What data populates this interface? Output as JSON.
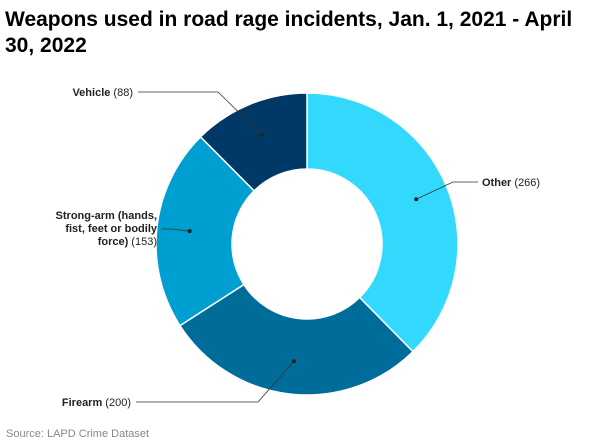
{
  "title": "Weapons used in road rage incidents, Jan. 1, 2021 - April 30, 2022",
  "source": "Source: LAPD Crime Dataset",
  "chart_data": {
    "type": "pie",
    "donut": true,
    "title": "Weapons used in road rage incidents, Jan. 1, 2021 - April 30, 2022",
    "categories": [
      "Other",
      "Firearm",
      "Strong-arm (hands, fist, feet or bodily force)",
      "Vehicle"
    ],
    "values": [
      266,
      200,
      153,
      88
    ],
    "colors": [
      "#33d9fc",
      "#006c99",
      "#009fd1",
      "#003866"
    ],
    "labels": [
      {
        "name_lines": [
          "Other"
        ],
        "value_text": "(266)"
      },
      {
        "name_lines": [
          "Firearm"
        ],
        "value_text": "(200)"
      },
      {
        "name_lines": [
          "Strong-arm (hands,",
          "fist, feet or bodily",
          "force)"
        ],
        "value_text": "(153)"
      },
      {
        "name_lines": [
          "Vehicle"
        ],
        "value_text": "(88)"
      }
    ],
    "legend": "none"
  }
}
